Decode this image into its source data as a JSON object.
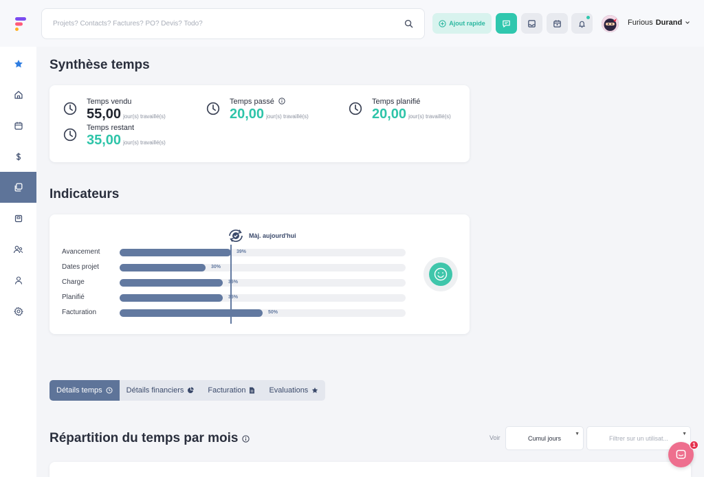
{
  "search": {
    "placeholder": "Projets? Contacts? Factures? PO? Devis? Todo?"
  },
  "header": {
    "quick_add_label": "Ajout rapide",
    "user_first": "Furious",
    "user_last": "Durand"
  },
  "synthese": {
    "title": "Synthèse temps",
    "stats": [
      {
        "label": "Temps vendu",
        "value": "55,00",
        "unit": "jour(s) travaillé(s)"
      },
      {
        "label": "Temps passé",
        "value": "20,00",
        "unit": "jour(s) travaillé(s)"
      },
      {
        "label": "Temps planifié",
        "value": "20,00",
        "unit": "jour(s) travaillé(s)"
      },
      {
        "label": "Temps restant",
        "value": "35,00",
        "unit": "jour(s) travaillé(s)"
      }
    ]
  },
  "indicateurs": {
    "title": "Indicateurs",
    "update_label": "Màj. aujourd'hui",
    "today_marker": 0.39,
    "rows": [
      {
        "name": "Avancement",
        "value": 0.39,
        "label": "39%"
      },
      {
        "name": "Dates projet",
        "value": 0.3,
        "label": "30%"
      },
      {
        "name": "Charge",
        "value": 0.36,
        "label": "36%"
      },
      {
        "name": "Planifié",
        "value": 0.36,
        "label": "36%"
      },
      {
        "name": "Facturation",
        "value": 0.5,
        "label": "50%"
      }
    ]
  },
  "tabs": [
    {
      "label": "Détails temps",
      "icon": "clock-icon"
    },
    {
      "label": "Détails financiers",
      "icon": "pie-chart-icon"
    },
    {
      "label": "Facturation",
      "icon": "document-icon"
    },
    {
      "label": "Evaluations",
      "icon": "star-icon"
    }
  ],
  "repartition": {
    "title": "Répartition du temps par mois",
    "voir_label": "Voir",
    "cumul_value": "Cumul jours",
    "filter_placeholder": "Filtrer sur un utilisat..."
  },
  "chat": {
    "badge": "1"
  },
  "colors": {
    "accent": "#30c7ae",
    "primary": "#5e7499"
  }
}
